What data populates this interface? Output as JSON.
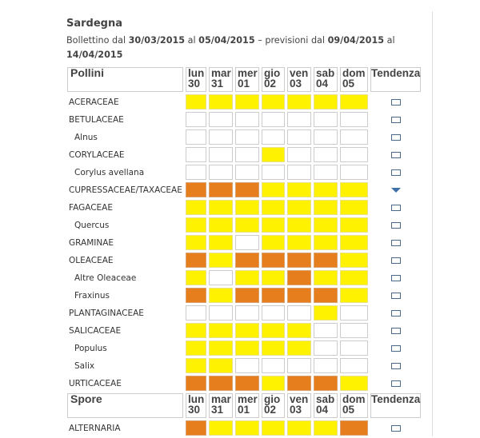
{
  "region": "Sardegna",
  "bulletin": {
    "p1": "Bollettino dal",
    "d1": "30/03/2015",
    "p2": "al",
    "d2": "05/04/2015",
    "p3": "– previsioni dal",
    "d3": "09/04/2015",
    "p4": "al",
    "d4": "14/04/2015"
  },
  "days": [
    {
      "d": "lun",
      "n": "30"
    },
    {
      "d": "mar",
      "n": "31"
    },
    {
      "d": "mer",
      "n": "01"
    },
    {
      "d": "gio",
      "n": "02"
    },
    {
      "d": "ven",
      "n": "03"
    },
    {
      "d": "sab",
      "n": "04"
    },
    {
      "d": "dom",
      "n": "05"
    }
  ],
  "trend_label": "Tendenza",
  "level_colors": {
    "0": "#ffffff",
    "1": "#fff200",
    "2": "#e67e1e"
  },
  "sections": [
    {
      "title": "Pollini",
      "rows": [
        {
          "name": "ACERACEAE",
          "sub": false,
          "levels": [
            1,
            1,
            1,
            1,
            1,
            1,
            1
          ],
          "trend": "stable"
        },
        {
          "name": "BETULACEAE",
          "sub": false,
          "levels": [
            0,
            0,
            0,
            0,
            0,
            0,
            0
          ],
          "trend": "stable"
        },
        {
          "name": "Alnus",
          "sub": true,
          "levels": [
            0,
            0,
            0,
            0,
            0,
            0,
            0
          ],
          "trend": "stable"
        },
        {
          "name": "CORYLACEAE",
          "sub": false,
          "levels": [
            0,
            0,
            0,
            1,
            0,
            0,
            0
          ],
          "trend": "stable"
        },
        {
          "name": "Corylus avellana",
          "sub": true,
          "levels": [
            0,
            0,
            0,
            0,
            0,
            0,
            0
          ],
          "trend": "stable"
        },
        {
          "name": "CUPRESSACEAE/TAXACEAE",
          "sub": false,
          "levels": [
            2,
            2,
            2,
            1,
            1,
            1,
            1
          ],
          "trend": "down"
        },
        {
          "name": "FAGACEAE",
          "sub": false,
          "levels": [
            1,
            1,
            1,
            1,
            1,
            1,
            1
          ],
          "trend": "stable"
        },
        {
          "name": "Quercus",
          "sub": true,
          "levels": [
            1,
            1,
            1,
            1,
            1,
            1,
            1
          ],
          "trend": "stable"
        },
        {
          "name": "GRAMINAE",
          "sub": false,
          "levels": [
            1,
            1,
            0,
            1,
            1,
            1,
            1
          ],
          "trend": "stable"
        },
        {
          "name": "OLEACEAE",
          "sub": false,
          "levels": [
            2,
            1,
            2,
            2,
            2,
            2,
            1
          ],
          "trend": "stable"
        },
        {
          "name": "Altre Oleaceae",
          "sub": true,
          "levels": [
            1,
            0,
            1,
            1,
            2,
            1,
            1
          ],
          "trend": "stable"
        },
        {
          "name": "Fraxinus",
          "sub": true,
          "levels": [
            2,
            1,
            2,
            2,
            2,
            2,
            1
          ],
          "trend": "stable"
        },
        {
          "name": "PLANTAGINACEAE",
          "sub": false,
          "levels": [
            0,
            0,
            0,
            0,
            0,
            1,
            0
          ],
          "trend": "stable"
        },
        {
          "name": "SALICACEAE",
          "sub": false,
          "levels": [
            1,
            1,
            1,
            1,
            1,
            0,
            0
          ],
          "trend": "stable"
        },
        {
          "name": "Populus",
          "sub": true,
          "levels": [
            1,
            1,
            1,
            1,
            1,
            0,
            0
          ],
          "trend": "stable"
        },
        {
          "name": "Salix",
          "sub": true,
          "levels": [
            1,
            1,
            0,
            0,
            0,
            0,
            0
          ],
          "trend": "stable"
        },
        {
          "name": "URTICACEAE",
          "sub": false,
          "levels": [
            2,
            2,
            2,
            1,
            2,
            2,
            1
          ],
          "trend": "stable"
        }
      ]
    },
    {
      "title": "Spore",
      "rows": [
        {
          "name": "ALTERNARIA",
          "sub": false,
          "levels": [
            2,
            1,
            1,
            1,
            1,
            1,
            2
          ],
          "trend": "stable"
        }
      ]
    }
  ]
}
